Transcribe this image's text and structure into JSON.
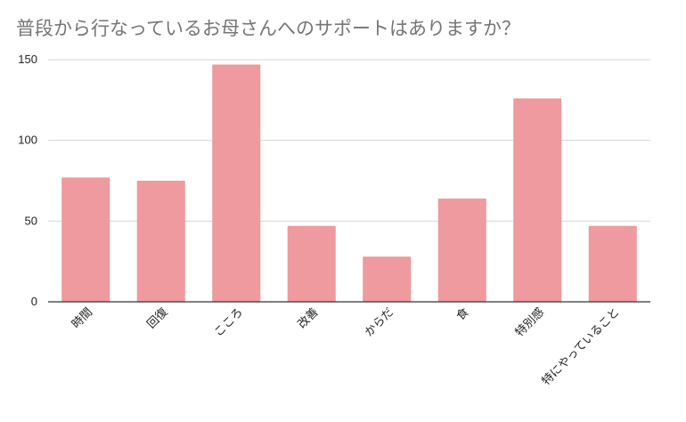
{
  "chart_data": {
    "type": "bar",
    "title": "普段から行なっているお母さんへのサポートはありますか？",
    "categories": [
      "時間",
      "回復",
      "こころ",
      "改善",
      "からだ",
      "食",
      "特別感",
      "特にやっていること"
    ],
    "values": [
      77,
      75,
      147,
      47,
      28,
      64,
      126,
      47
    ],
    "ylim": [
      0,
      150
    ],
    "yticks": [
      0,
      50,
      100,
      150
    ],
    "xlabel": "",
    "ylabel": "",
    "grid": true,
    "bar_color": "#ee9a9e",
    "gridline_color": "#d6d6d6",
    "axis_color": "#333333"
  }
}
